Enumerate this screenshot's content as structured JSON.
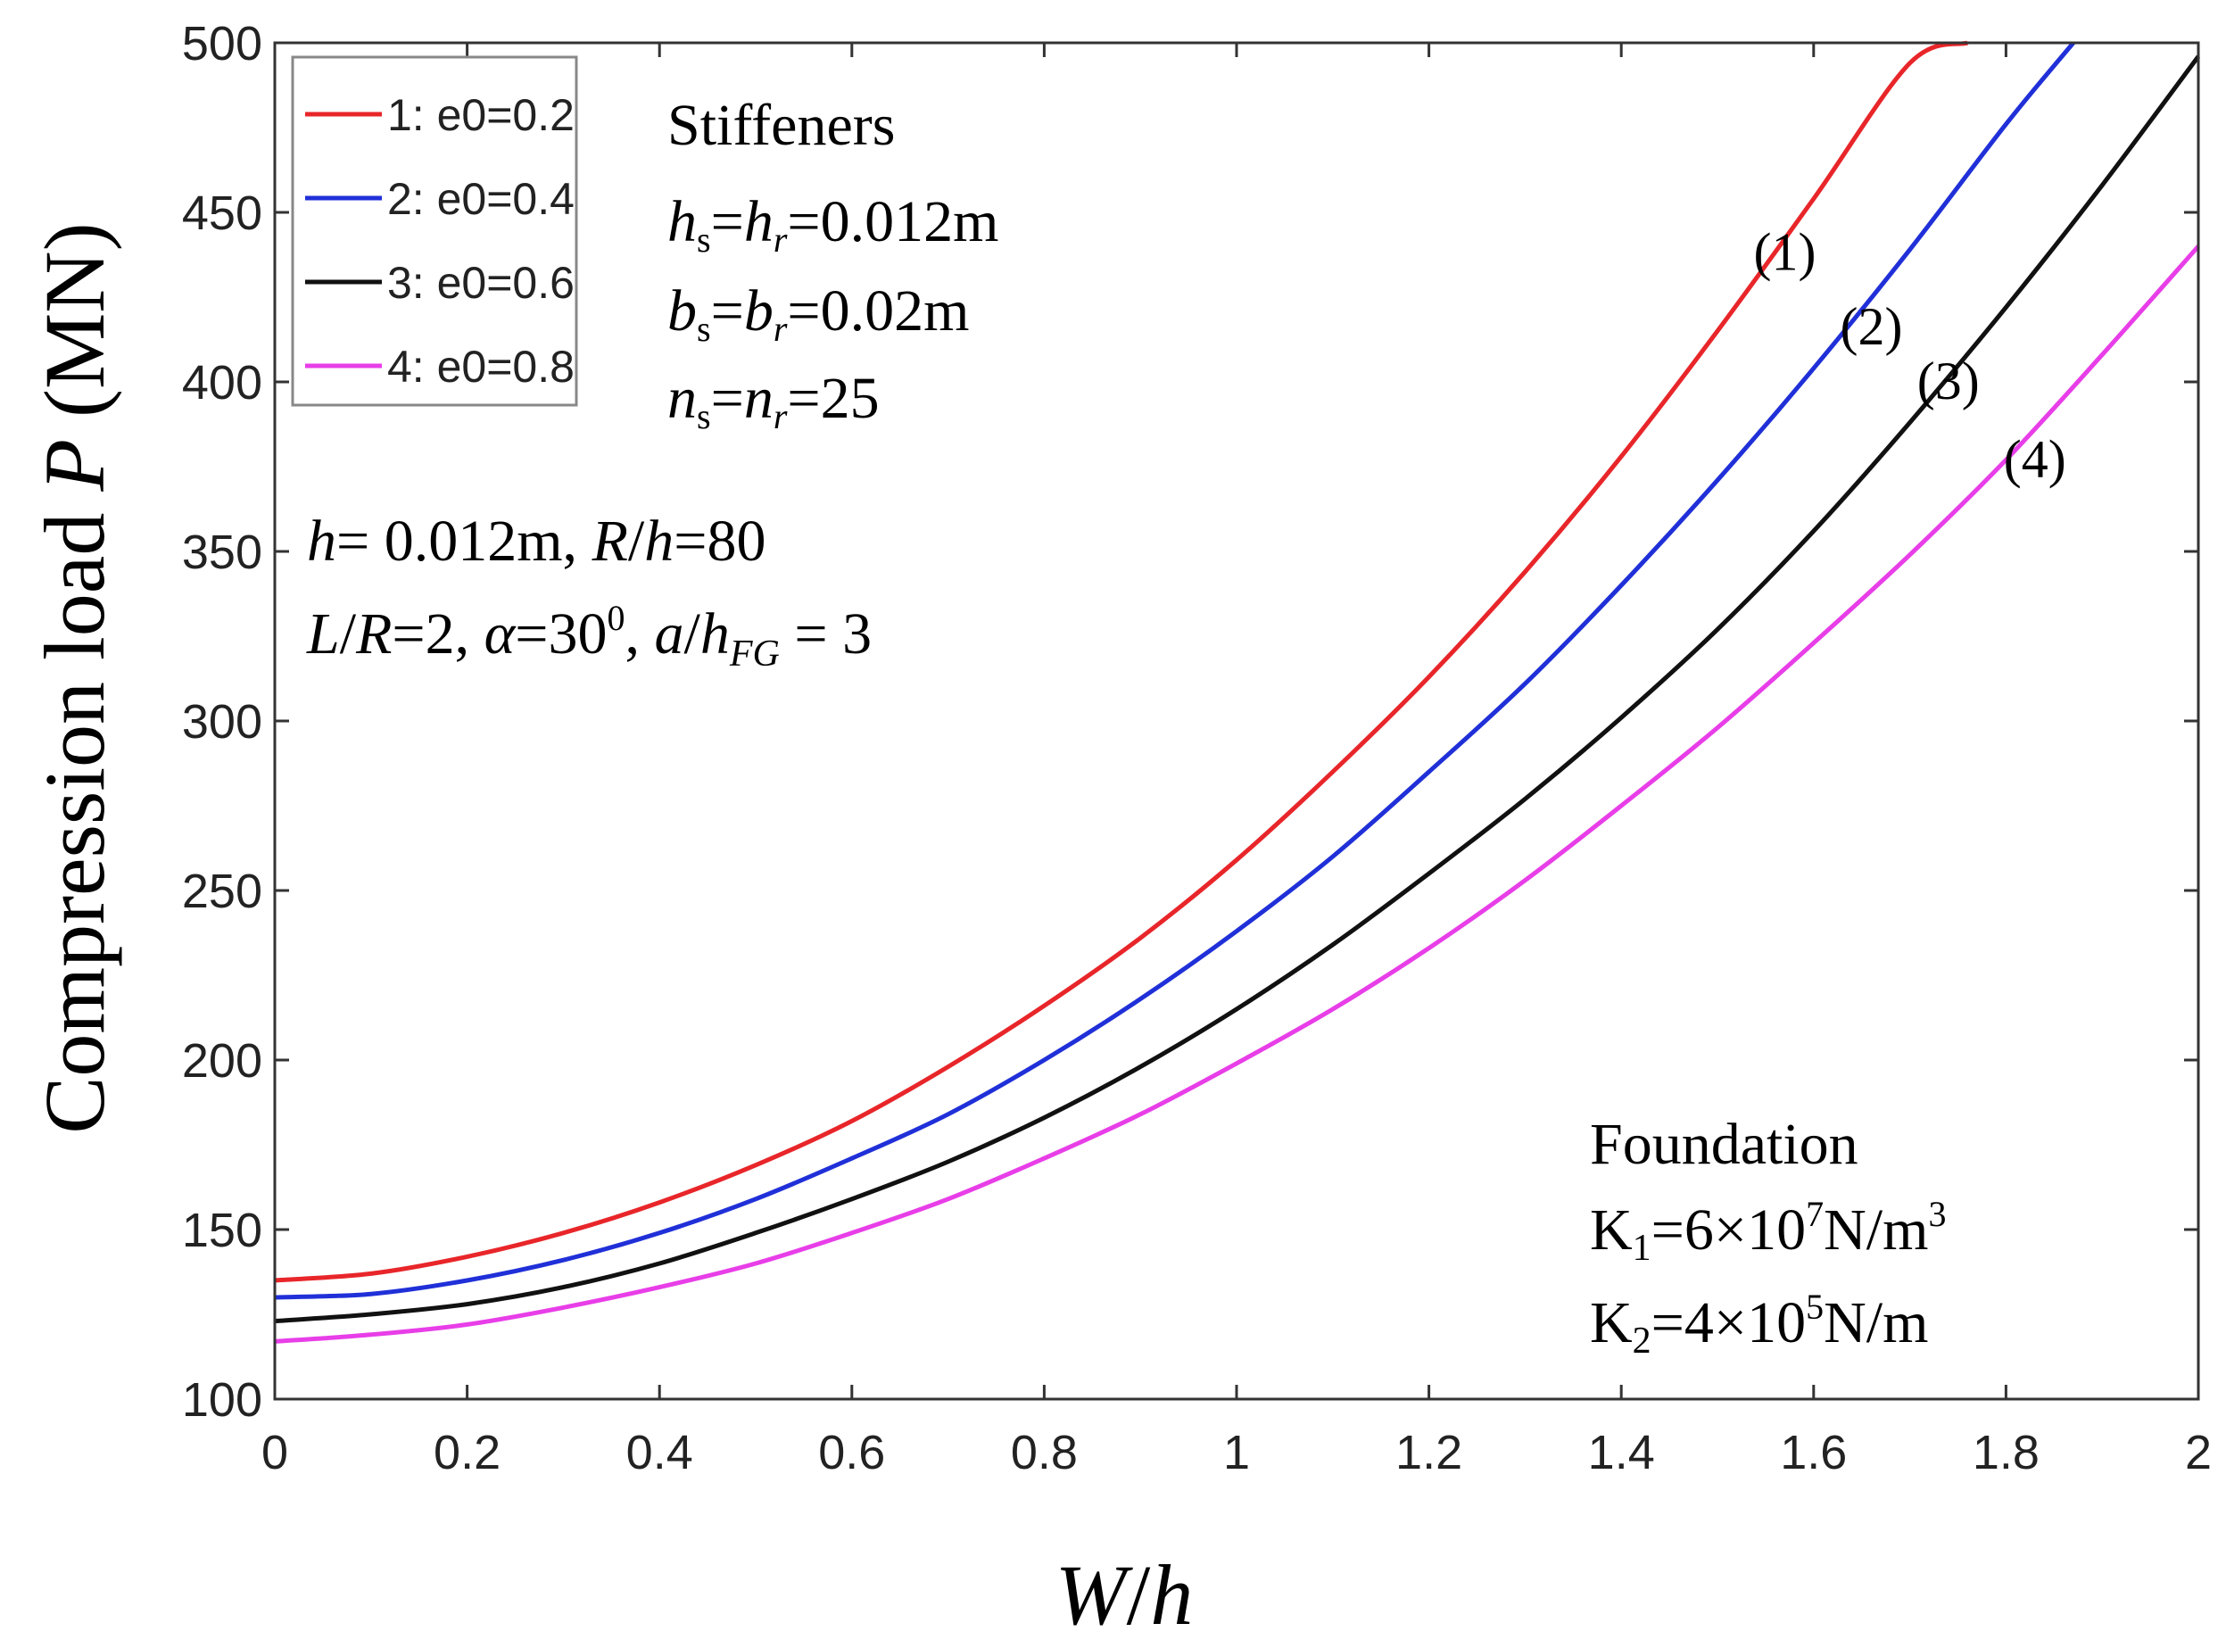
{
  "chart_data": {
    "type": "line",
    "xlabel_parts": [
      "W",
      "/",
      "h"
    ],
    "ylabel_parts": [
      "Compression load ",
      "P",
      " (MN)"
    ],
    "xlim": [
      0,
      2
    ],
    "ylim": [
      100,
      500
    ],
    "xticks": [
      0,
      0.2,
      0.4,
      0.6,
      0.8,
      1,
      1.2,
      1.4,
      1.6,
      1.8,
      2
    ],
    "xtick_labels": [
      "0",
      "0.2",
      "0.4",
      "0.6",
      "0.8",
      "1",
      "1.2",
      "1.4",
      "1.6",
      "1.8",
      "2"
    ],
    "yticks": [
      100,
      150,
      200,
      250,
      300,
      350,
      400,
      450,
      500
    ],
    "ytick_labels": [
      "100",
      "150",
      "200",
      "250",
      "300",
      "350",
      "400",
      "450",
      "500"
    ],
    "legend_position": "top-left",
    "series": [
      {
        "name": "1: e0=0.2",
        "label": "(1)",
        "color": "#e8262a",
        "x": [
          0,
          0.1,
          0.2,
          0.3,
          0.4,
          0.5,
          0.6,
          0.7,
          0.8,
          0.9,
          1.0,
          1.1,
          1.2,
          1.3,
          1.4,
          1.5,
          1.6,
          1.7,
          1.76
        ],
        "y": [
          135,
          137,
          142,
          149,
          158,
          169,
          182,
          198,
          216,
          236,
          259,
          285,
          313,
          344,
          378,
          415,
          454,
          494,
          500
        ]
      },
      {
        "name": "2: e0=0.4",
        "label": "(2)",
        "color": "#2030d8",
        "x": [
          0,
          0.1,
          0.2,
          0.3,
          0.4,
          0.5,
          0.6,
          0.7,
          0.8,
          0.9,
          1.0,
          1.1,
          1.2,
          1.3,
          1.4,
          1.5,
          1.6,
          1.7,
          1.8,
          1.87
        ],
        "y": [
          130,
          131,
          135,
          141,
          149,
          159,
          171,
          184,
          200,
          218,
          238,
          260,
          285,
          311,
          340,
          371,
          404,
          439,
          476,
          500
        ]
      },
      {
        "name": "3: e0=0.6",
        "label": "(3)",
        "color": "#111111",
        "x": [
          0,
          0.1,
          0.2,
          0.3,
          0.4,
          0.5,
          0.6,
          0.7,
          0.8,
          0.9,
          1.0,
          1.1,
          1.2,
          1.3,
          1.4,
          1.5,
          1.6,
          1.7,
          1.8,
          1.9,
          2.0
        ],
        "y": [
          123,
          125,
          128,
          133,
          140,
          149,
          159,
          170,
          183,
          198,
          215,
          234,
          255,
          277,
          301,
          327,
          356,
          388,
          422,
          458,
          496
        ]
      },
      {
        "name": "4: e0=0.8",
        "label": "(4)",
        "color": "#e83ee8",
        "x": [
          0,
          0.1,
          0.2,
          0.3,
          0.4,
          0.5,
          0.6,
          0.7,
          0.8,
          0.9,
          1.0,
          1.1,
          1.2,
          1.3,
          1.4,
          1.5,
          1.6,
          1.7,
          1.8,
          1.9,
          2.0
        ],
        "y": [
          117,
          119,
          122,
          127,
          133,
          140,
          149,
          159,
          171,
          184,
          199,
          215,
          233,
          253,
          275,
          298,
          323,
          349,
          377,
          408,
          440
        ]
      }
    ],
    "curve_label_points": [
      {
        "label": "(1)",
        "x": 1.57,
        "y": 433
      },
      {
        "label": "(2)",
        "x": 1.66,
        "y": 411
      },
      {
        "label": "(3)",
        "x": 1.74,
        "y": 395
      },
      {
        "label": "(4)",
        "x": 1.83,
        "y": 372
      }
    ],
    "annotations": {
      "stiffeners_title": "Stiffeners",
      "stiffener_h": {
        "v1": "h",
        "s1": "s",
        "eq1": "=",
        "v2": "h",
        "s2": "r",
        "rest": "=0.012m"
      },
      "stiffener_b": {
        "v1": "b",
        "s1": "s",
        "eq1": "=",
        "v2": "b",
        "s2": "r",
        "rest": "=0.02m"
      },
      "stiffener_n": {
        "v1": "n",
        "s1": "s",
        "eq1": "=",
        "v2": "n",
        "s2": "r",
        "rest": "=25"
      },
      "geometry_line1": {
        "v1": "h",
        "t1": "= 0.012m, ",
        "v2": "R",
        "t2": "/",
        "v3": "h",
        "t3": "=80"
      },
      "geometry_line2": {
        "v1": "L",
        "t1": "/",
        "v2": "R",
        "t2": "=2, ",
        "v3": "α",
        "t3": "=30",
        "sup": "0",
        "t4": ", ",
        "v4": "a",
        "t5": "/",
        "v5": "h",
        "sub": "FG",
        "t6": " = 3"
      },
      "foundation_title": "Foundation",
      "k1": {
        "k": "K",
        "sub": "1",
        "t1": "=6×10",
        "sup1": "7",
        "t2": "N/m",
        "sup2": "3"
      },
      "k2": {
        "k": "K",
        "sub": "2",
        "t1": "=4×10",
        "sup1": "5",
        "t2": "N/m"
      }
    }
  }
}
